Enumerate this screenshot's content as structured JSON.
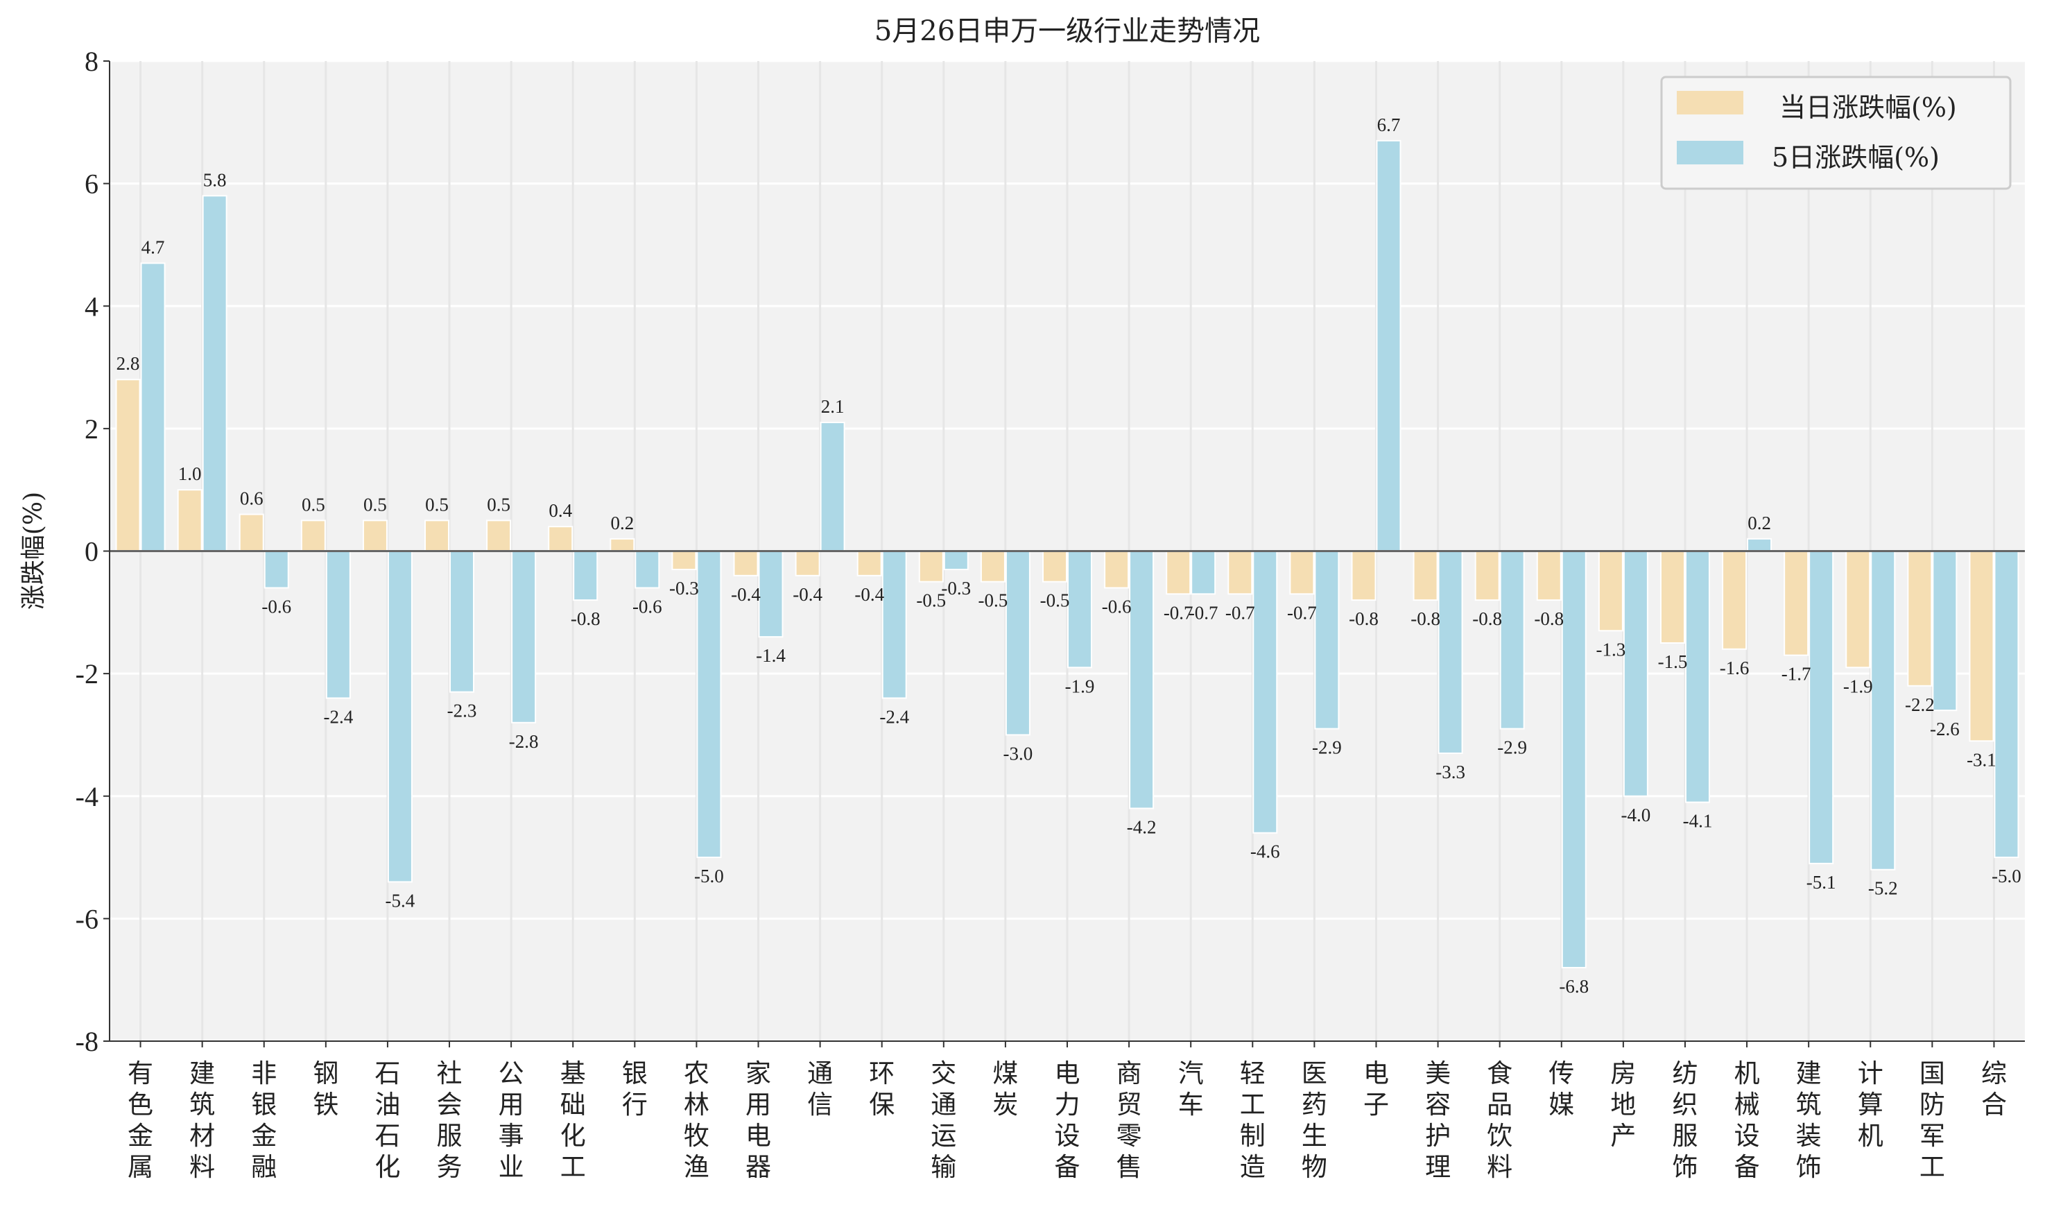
{
  "chart_data": {
    "type": "bar",
    "title": "5月26日申万一级行业走势情况",
    "ylabel": "涨跌幅(%)",
    "ylim": [
      -8,
      8
    ],
    "yticks": [
      8,
      6,
      4,
      2,
      0,
      -2,
      -4,
      -6,
      -8
    ],
    "ytick_labels": [
      "8",
      "6",
      "4",
      "2",
      "0",
      "-2",
      "-4",
      "-6",
      "-8"
    ],
    "grid": true,
    "legend_position": "top-right",
    "categories": [
      "有色金属",
      "建筑材料",
      "非银金融",
      "钢铁",
      "石油石化",
      "社会服务",
      "公用事业",
      "基础化工",
      "银行",
      "农林牧渔",
      "家用电器",
      "通信",
      "环保",
      "交通运输",
      "煤炭",
      "电力设备",
      "商贸零售",
      "汽车",
      "轻工制造",
      "医药生物",
      "电子",
      "美容护理",
      "食品饮料",
      "传媒",
      "房地产",
      "纺织服饰",
      "机械设备",
      "建筑装饰",
      "计算机",
      "国防军工",
      "综合"
    ],
    "series": [
      {
        "name": "当日涨跌幅(%)",
        "color": "#f5deb3",
        "values": [
          2.8,
          1.0,
          0.6,
          0.5,
          0.5,
          0.5,
          0.5,
          0.4,
          0.2,
          -0.3,
          -0.4,
          -0.4,
          -0.4,
          -0.5,
          -0.5,
          -0.5,
          -0.6,
          -0.7,
          -0.7,
          -0.7,
          -0.8,
          -0.8,
          -0.8,
          -0.8,
          -1.3,
          -1.5,
          -1.6,
          -1.7,
          -1.9,
          -2.2,
          -3.1
        ],
        "labels": [
          "2.8",
          "1.0",
          "0.6",
          "0.5",
          "0.5",
          "0.5",
          "0.5",
          "0.4",
          "0.2",
          "-0.3",
          "-0.4",
          "-0.4",
          "-0.4",
          "-0.5",
          "-0.5",
          "-0.5",
          "-0.6",
          "-0.7",
          "-0.7",
          "-0.7",
          "-0.8",
          "-0.8",
          "-0.8",
          "-0.8",
          "-1.3",
          "-1.5",
          "-1.6",
          "-1.7",
          "-1.9",
          "-2.2",
          "-3.1"
        ]
      },
      {
        "name": "5日涨跌幅(%)",
        "color": "#add8e6",
        "values": [
          4.7,
          5.8,
          -0.6,
          -2.4,
          -5.4,
          -2.3,
          -2.8,
          -0.8,
          -0.6,
          -5.0,
          -1.4,
          2.1,
          -2.4,
          -0.3,
          -3.0,
          -1.9,
          -4.2,
          -0.7,
          -4.6,
          -2.9,
          6.7,
          -3.3,
          -2.9,
          -6.8,
          -4.0,
          -4.1,
          0.2,
          -5.1,
          -5.2,
          -2.6,
          -5.0
        ],
        "labels": [
          "4.7",
          "5.8",
          "-0.6",
          "-2.4",
          "-5.4",
          "-2.3",
          "-2.8",
          "-0.8",
          "-0.6",
          "-5.0",
          "-1.4",
          "2.1",
          "-2.4",
          "-0.3",
          "-3.0",
          "-1.9",
          "-4.2",
          "-0.7",
          "-4.6",
          "-2.9",
          "6.7",
          "-3.3",
          "-2.9",
          "-6.8",
          "-4.0",
          "-4.1",
          "0.2",
          "-5.1",
          "-5.2",
          "-2.6",
          "-5.0"
        ]
      }
    ]
  }
}
